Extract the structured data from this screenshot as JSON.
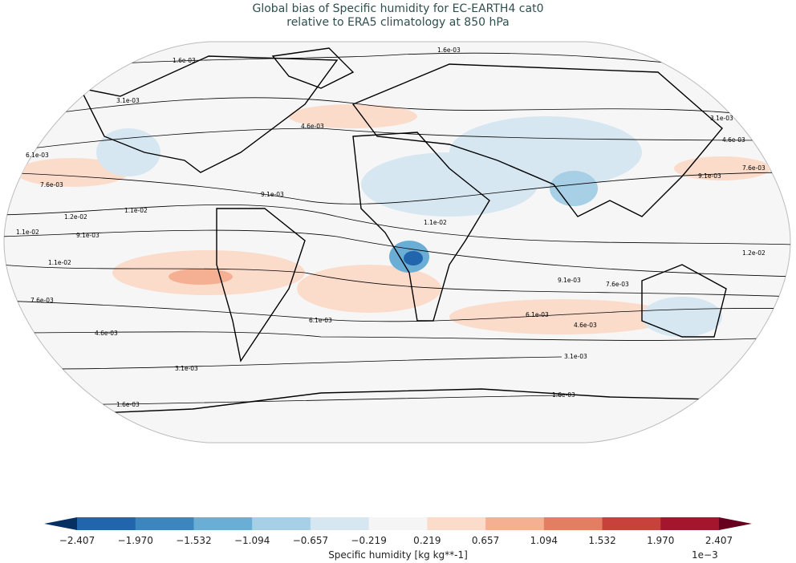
{
  "title": {
    "line1": "Global bias of Specific humidity for EC-EARTH4 cat0",
    "line2": "relative to ERA5 climatology at 850 hPa"
  },
  "contour_labels": [
    "1.6e-03",
    "3.1e-03",
    "4.6e-03",
    "6.1e-03",
    "7.6e-03",
    "9.1e-03",
    "1.1e-02",
    "1.2e-02"
  ],
  "colorbar": {
    "label": "Specific humidity [kg kg**-1]",
    "multiplier": "1e−3",
    "ticks": [
      "−2.407",
      "−1.970",
      "−1.532",
      "−1.094",
      "−0.657",
      "−0.219",
      "0.219",
      "0.657",
      "1.094",
      "1.532",
      "1.970",
      "2.407"
    ],
    "colors": [
      "#053061",
      "#2166ac",
      "#3c86bf",
      "#6aaed5",
      "#a7cfe5",
      "#d6e7f1",
      "#f5f5f5",
      "#fbdccb",
      "#f5b093",
      "#e37e62",
      "#c8423d",
      "#a3162e",
      "#67001f"
    ]
  }
}
